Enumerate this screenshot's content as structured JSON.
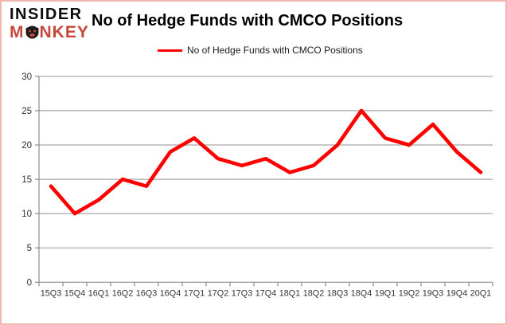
{
  "logo": {
    "line1": "INSIDER",
    "word2_prefix": "M",
    "word2_suffix": "NKEY"
  },
  "header": {
    "title": "No of Hedge Funds with CMCO Positions"
  },
  "legend": {
    "label": "No of Hedge Funds with CMCO Positions"
  },
  "colors": {
    "line": "#fe0000",
    "grid": "#a6a6a6",
    "axis": "#8c8c8c",
    "tick_label": "#333333",
    "logo_black": "#0d0d0d",
    "logo_red": "#c5483b",
    "frame_border": "#f2b6b0"
  },
  "chart_data": {
    "type": "line",
    "title": "No of Hedge Funds with CMCO Positions",
    "categories": [
      "15Q3",
      "15Q4",
      "16Q1",
      "16Q2",
      "16Q3",
      "16Q4",
      "17Q1",
      "17Q2",
      "17Q3",
      "17Q4",
      "18Q1",
      "18Q2",
      "18Q3",
      "18Q4",
      "19Q1",
      "19Q2",
      "19Q3",
      "19Q4",
      "20Q1"
    ],
    "series": [
      {
        "name": "No of Hedge Funds with CMCO Positions",
        "color": "#fe0000",
        "values": [
          14,
          10,
          12,
          15,
          14,
          19,
          21,
          18,
          17,
          18,
          16,
          17,
          20,
          25,
          21,
          20,
          23,
          19,
          16
        ]
      }
    ],
    "ylim": [
      0,
      30
    ],
    "ytick_step": 5,
    "grid": true,
    "legend_position": "top"
  }
}
